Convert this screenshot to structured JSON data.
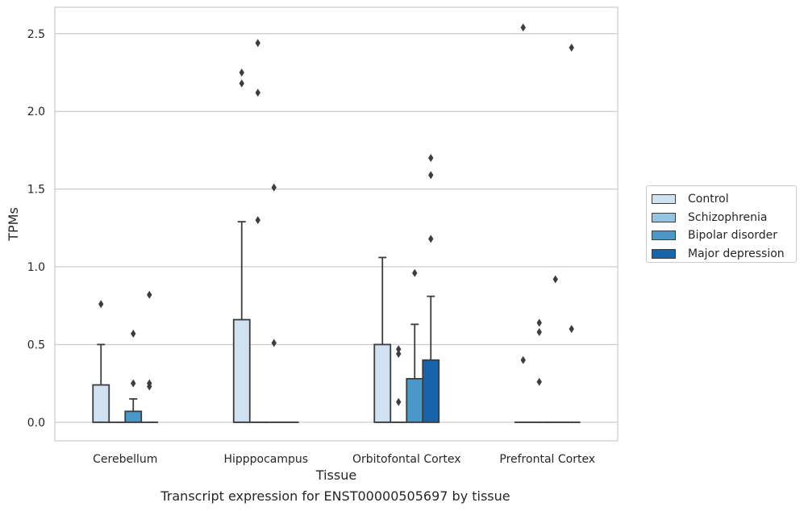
{
  "chart_data": {
    "type": "box",
    "caption": "Transcript expression for ENST00000505697 by tissue",
    "xlabel": "Tissue",
    "ylabel": "TPMs",
    "ylim": [
      -0.12,
      2.67
    ],
    "yticks": [
      "0.0",
      "0.5",
      "1.0",
      "1.5",
      "2.0",
      "2.5"
    ],
    "ytick_values": [
      0.0,
      0.5,
      1.0,
      1.5,
      2.0,
      2.5
    ],
    "grid": true,
    "legend_position": "right",
    "categories": [
      "Cerebellum",
      "Hipppocampus",
      "Orbitofontal Cortex",
      "Prefrontal Cortex"
    ],
    "series": [
      {
        "name": "Control",
        "color": "#d0e1f2",
        "boxes": [
          {
            "q1": 0,
            "median": 0,
            "q3": 0.24,
            "whisker_low": 0,
            "whisker_high": 0.5,
            "outliers": [
              0.76
            ]
          },
          {
            "q1": 0,
            "median": 0,
            "q3": 0.66,
            "whisker_low": 0,
            "whisker_high": 1.29,
            "outliers": [
              2.25,
              2.18
            ]
          },
          {
            "q1": 0,
            "median": 0,
            "q3": 0.5,
            "whisker_low": 0,
            "whisker_high": 1.06,
            "outliers": []
          },
          {
            "q1": 0,
            "median": 0,
            "q3": 0,
            "whisker_low": 0,
            "whisker_high": 0,
            "outliers": [
              2.54,
              0.4
            ]
          }
        ]
      },
      {
        "name": "Schizophrenia",
        "color": "#94c4df",
        "boxes": [
          {
            "q1": 0,
            "median": 0,
            "q3": 0,
            "whisker_low": 0,
            "whisker_high": 0,
            "outliers": []
          },
          {
            "q1": 0,
            "median": 0,
            "q3": 0,
            "whisker_low": 0,
            "whisker_high": 0,
            "outliers": [
              2.44,
              2.12,
              1.3
            ]
          },
          {
            "q1": 0,
            "median": 0,
            "q3": 0,
            "whisker_low": 0,
            "whisker_high": 0,
            "outliers": [
              0.47,
              0.44,
              0.13
            ]
          },
          {
            "q1": 0,
            "median": 0,
            "q3": 0,
            "whisker_low": 0,
            "whisker_high": 0,
            "outliers": [
              0.64,
              0.58,
              0.26
            ]
          }
        ]
      },
      {
        "name": "Bipolar disorder",
        "color": "#4a98c9",
        "boxes": [
          {
            "q1": 0,
            "median": 0,
            "q3": 0.07,
            "whisker_low": 0,
            "whisker_high": 0.15,
            "outliers": [
              0.57,
              0.25
            ]
          },
          {
            "q1": 0,
            "median": 0,
            "q3": 0,
            "whisker_low": 0,
            "whisker_high": 0,
            "outliers": [
              1.51,
              0.51
            ]
          },
          {
            "q1": 0,
            "median": 0,
            "q3": 0.28,
            "whisker_low": 0,
            "whisker_high": 0.63,
            "outliers": [
              0.96
            ]
          },
          {
            "q1": 0,
            "median": 0,
            "q3": 0,
            "whisker_low": 0,
            "whisker_high": 0,
            "outliers": [
              0.92
            ]
          }
        ]
      },
      {
        "name": "Major depression",
        "color": "#1764ab",
        "boxes": [
          {
            "q1": 0,
            "median": 0,
            "q3": 0,
            "whisker_low": 0,
            "whisker_high": 0,
            "outliers": [
              0.82,
              0.25,
              0.23
            ]
          },
          {
            "q1": 0,
            "median": 0,
            "q3": 0,
            "whisker_low": 0,
            "whisker_high": 0,
            "outliers": []
          },
          {
            "q1": 0,
            "median": 0,
            "q3": 0.4,
            "whisker_low": 0,
            "whisker_high": 0.81,
            "outliers": [
              1.7,
              1.59,
              1.18
            ]
          },
          {
            "q1": 0,
            "median": 0,
            "q3": 0,
            "whisker_low": 0,
            "whisker_high": 0,
            "outliers": [
              2.41,
              0.6
            ]
          }
        ]
      }
    ]
  }
}
